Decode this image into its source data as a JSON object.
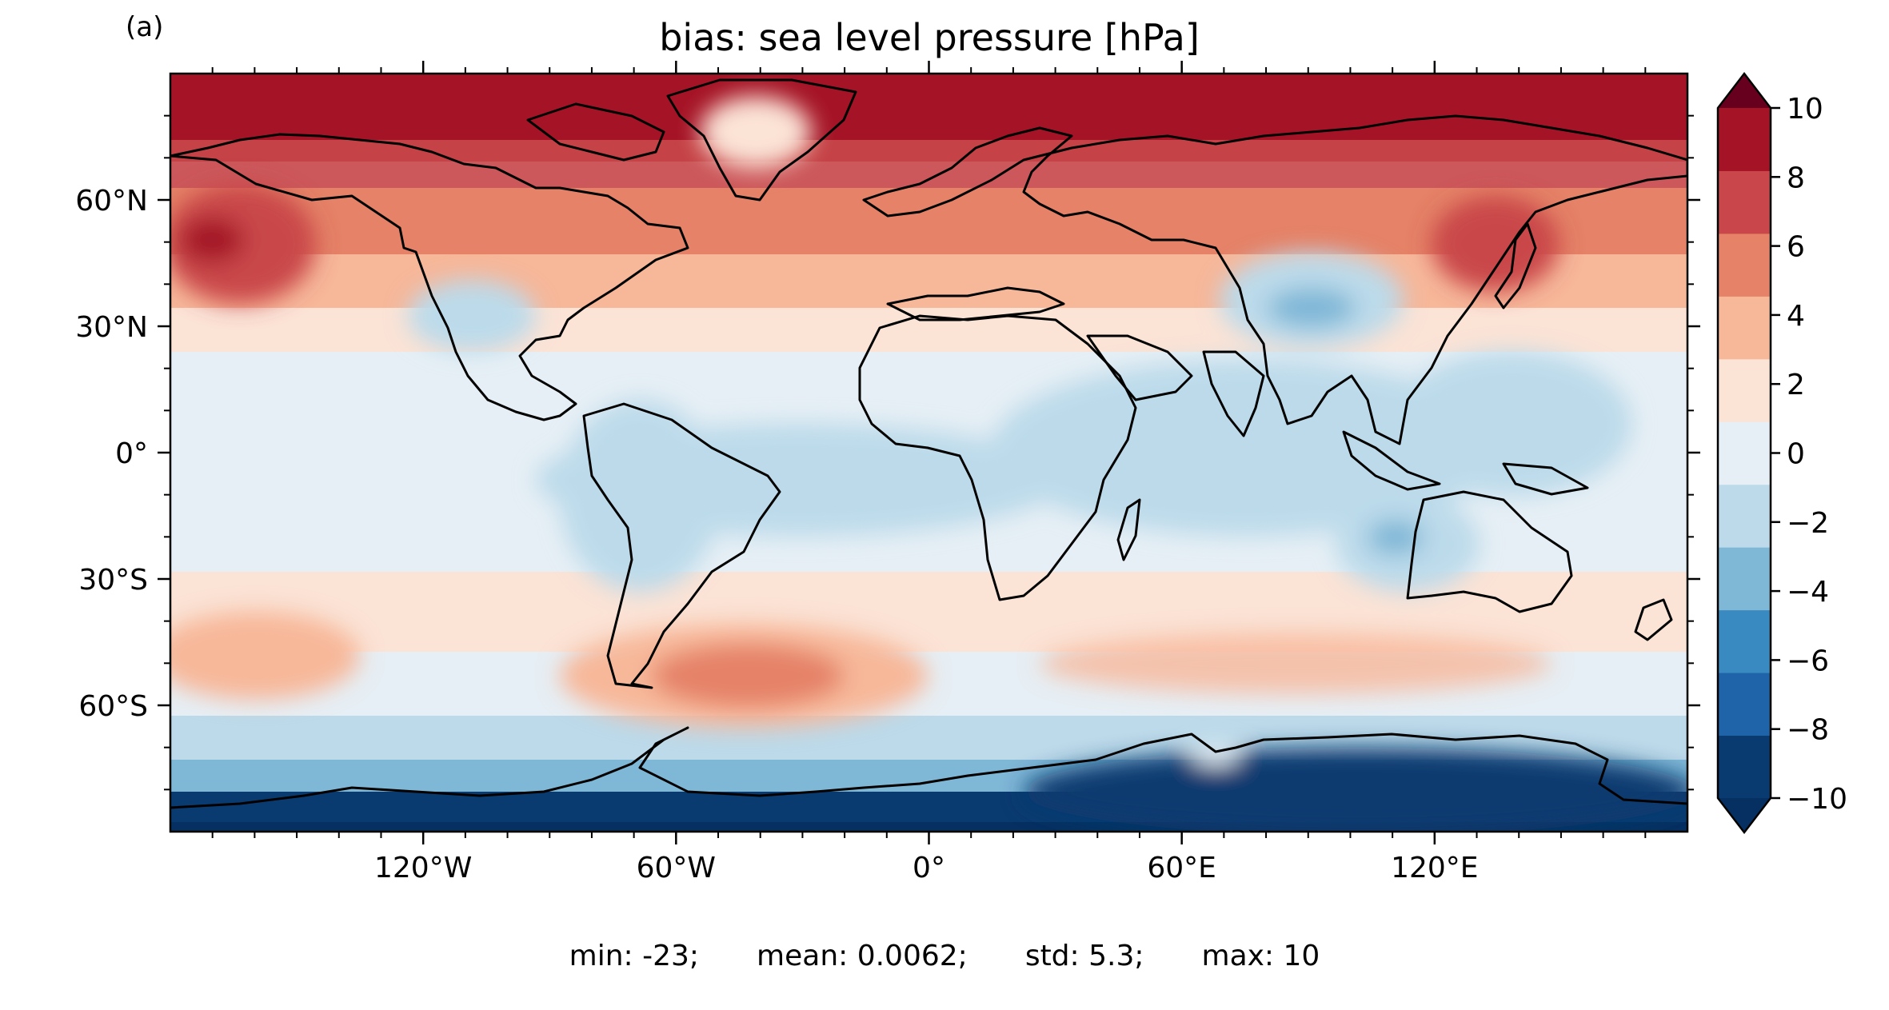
{
  "panel_label": "(a)",
  "title": "bias: sea level pressure [hPa]",
  "stats": {
    "min": "min: -23;",
    "mean": "mean: 0.0062;",
    "std": "std: 5.3;",
    "max": "max: 10"
  },
  "map": {
    "projection": "PlateCarree",
    "extent": {
      "lon": [
        -180,
        180
      ],
      "lat": [
        -90,
        90
      ]
    },
    "lon_ticks": [
      {
        "lon": -120,
        "label": "120°W"
      },
      {
        "lon": -60,
        "label": "60°W"
      },
      {
        "lon": 0,
        "label": "0°"
      },
      {
        "lon": 60,
        "label": "60°E"
      },
      {
        "lon": 120,
        "label": "120°E"
      }
    ],
    "lat_ticks": [
      {
        "lat": 60,
        "label": "60°N"
      },
      {
        "lat": 30,
        "label": "30°N"
      },
      {
        "lat": 0,
        "label": "0°"
      },
      {
        "lat": -30,
        "label": "30°S"
      },
      {
        "lat": -60,
        "label": "60°S"
      }
    ],
    "features": [
      "coastlines"
    ]
  },
  "colorbar": {
    "colormap": "RdBu_r",
    "extend": "both",
    "levels": [
      -10,
      -8,
      -6,
      -4,
      -2,
      0,
      2,
      4,
      6,
      8,
      10
    ],
    "tick_labels": [
      "−10",
      "−8",
      "−6",
      "−4",
      "−2",
      "0",
      "2",
      "4",
      "6",
      "8",
      "10"
    ],
    "colors": [
      "#0a3b70",
      "#1f63a8",
      "#3a8ac2",
      "#7fb7d7",
      "#bcdaea",
      "#e6eff5",
      "#fbe3d6",
      "#f7b799",
      "#e58267",
      "#c9474a",
      "#a51426"
    ],
    "under_color": "#053061",
    "over_color": "#67001f"
  }
}
